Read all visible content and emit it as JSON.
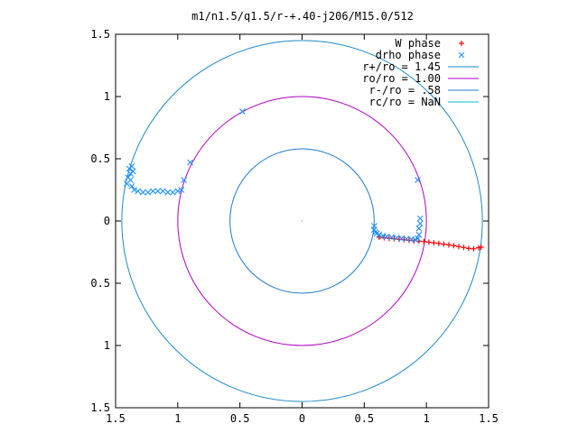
{
  "chart_data": {
    "type": "scatter",
    "title": "m1/n1.5/q1.5/r-+.40-j206/M15.0/512",
    "xlabel": "",
    "ylabel": "",
    "xlim": [
      -1.5,
      1.5
    ],
    "ylim": [
      -1.5,
      1.5
    ],
    "grid": false,
    "legend_position": "top-right",
    "x_tick_labels": [
      "1.5",
      "1",
      "0.5",
      "0",
      "0.5",
      "1",
      "1.5"
    ],
    "x_tick_values": [
      -1.5,
      -1.0,
      -0.5,
      0.0,
      0.5,
      1.0,
      1.5
    ],
    "y_tick_labels": [
      "1.5",
      "1",
      "0.5",
      "0",
      "0.5",
      "1",
      "1.5"
    ],
    "y_tick_values": [
      1.5,
      1.0,
      0.5,
      0.0,
      -0.5,
      -1.0,
      -1.5
    ],
    "colors": {
      "w_phase": "#ff0000",
      "drho_phase": "#1e90ff",
      "r_plus": "#1e8ac8",
      "r_zero": "#b000c0",
      "r_minus": "#1e7ad0",
      "r_c": "#00c0c0"
    },
    "series": [
      {
        "name": "W phase",
        "marker": "plus",
        "color": "#ff0000",
        "points": [
          [
            0.62,
            -0.13
          ],
          [
            0.66,
            -0.135
          ],
          [
            0.7,
            -0.14
          ],
          [
            0.74,
            -0.143
          ],
          [
            0.78,
            -0.147
          ],
          [
            0.82,
            -0.15
          ],
          [
            0.86,
            -0.155
          ],
          [
            0.9,
            -0.158
          ],
          [
            0.94,
            -0.162
          ],
          [
            0.98,
            -0.165
          ],
          [
            1.02,
            -0.17
          ],
          [
            1.06,
            -0.175
          ],
          [
            1.1,
            -0.18
          ],
          [
            1.14,
            -0.186
          ],
          [
            1.18,
            -0.192
          ],
          [
            1.22,
            -0.198
          ],
          [
            1.26,
            -0.205
          ],
          [
            1.3,
            -0.212
          ],
          [
            1.34,
            -0.22
          ],
          [
            1.38,
            -0.223
          ],
          [
            1.42,
            -0.215
          ],
          [
            1.44,
            -0.21
          ]
        ]
      },
      {
        "name": "drho phase",
        "marker": "x",
        "color": "#1e90ff",
        "points": [
          [
            0.58,
            -0.07
          ],
          [
            0.59,
            -0.09
          ],
          [
            0.6,
            -0.1
          ],
          [
            0.62,
            -0.11
          ],
          [
            0.65,
            -0.12
          ],
          [
            0.68,
            -0.125
          ],
          [
            0.72,
            -0.13
          ],
          [
            0.76,
            -0.135
          ],
          [
            0.8,
            -0.14
          ],
          [
            0.84,
            -0.143
          ],
          [
            0.88,
            -0.147
          ],
          [
            0.91,
            -0.15
          ],
          [
            0.93,
            -0.14
          ],
          [
            0.94,
            -0.11
          ],
          [
            0.94,
            -0.06
          ],
          [
            0.95,
            -0.02
          ],
          [
            0.95,
            0.02
          ],
          [
            0.93,
            0.33
          ],
          [
            0.58,
            -0.04
          ],
          [
            -0.48,
            0.88
          ],
          [
            -0.9,
            0.47
          ],
          [
            -0.95,
            0.33
          ],
          [
            -0.97,
            0.25
          ],
          [
            -1.0,
            0.24
          ],
          [
            -1.04,
            0.23
          ],
          [
            -1.08,
            0.23
          ],
          [
            -1.12,
            0.24
          ],
          [
            -1.16,
            0.24
          ],
          [
            -1.2,
            0.24
          ],
          [
            -1.24,
            0.23
          ],
          [
            -1.28,
            0.23
          ],
          [
            -1.32,
            0.24
          ],
          [
            -1.35,
            0.25
          ],
          [
            -1.37,
            0.28
          ],
          [
            -1.38,
            0.33
          ],
          [
            -1.38,
            0.38
          ],
          [
            -1.39,
            0.42
          ],
          [
            -1.4,
            0.35
          ],
          [
            -1.41,
            0.3
          ],
          [
            -1.37,
            0.44
          ],
          [
            -1.36,
            0.4
          ]
        ]
      },
      {
        "name": "r+/ro = 1.45",
        "type": "circle",
        "radius": 1.45,
        "color": "#1e8ac8"
      },
      {
        "name": "ro/ro = 1.00",
        "type": "circle",
        "radius": 1.0,
        "color": "#b000c0"
      },
      {
        "name": "r-/ro = .58",
        "type": "circle",
        "radius": 0.58,
        "color": "#1e7ad0"
      },
      {
        "name": "rc/ro = NaN",
        "type": "circle",
        "radius": null,
        "color": "#00c0c0"
      }
    ]
  }
}
